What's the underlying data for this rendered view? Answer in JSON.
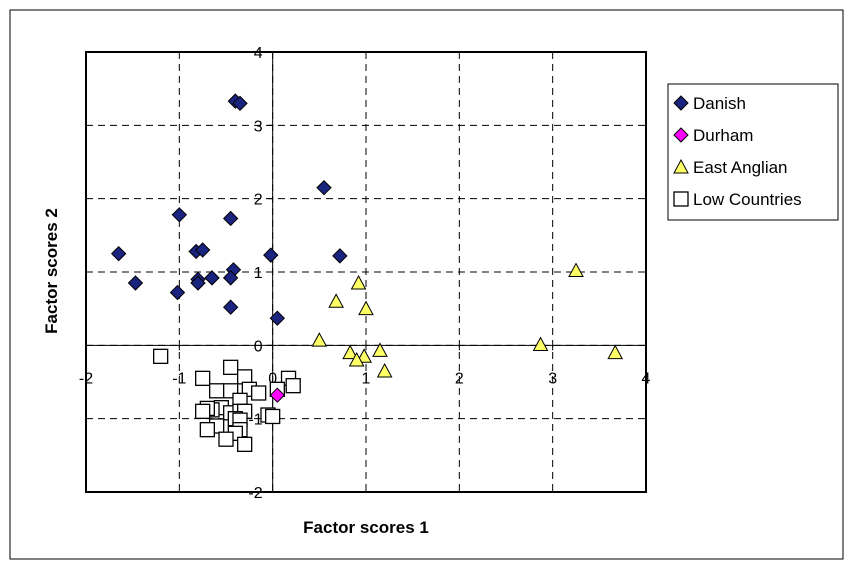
{
  "chart_data": {
    "type": "scatter",
    "xlabel": "Factor scores 1",
    "ylabel": "Factor scores 2",
    "xlim": [
      -2,
      4
    ],
    "ylim": [
      -2,
      4
    ],
    "xticks": [
      -2,
      -1,
      0,
      1,
      2,
      3,
      4
    ],
    "yticks": [
      -2,
      -1,
      0,
      1,
      2,
      3,
      4
    ],
    "xtick_labels": [
      "-2",
      "-1",
      "0",
      "1",
      "2",
      "3",
      "4"
    ],
    "ytick_labels": [
      "-2",
      "-1",
      "0",
      "1",
      "2",
      "3",
      "4"
    ],
    "grid": true,
    "legend_position": "right",
    "series": [
      {
        "name": "Danish",
        "marker": "diamond",
        "fill": "#1a237e",
        "points": [
          [
            -0.4,
            3.33
          ],
          [
            -0.35,
            3.3
          ],
          [
            -1.65,
            1.25
          ],
          [
            -1.47,
            0.85
          ],
          [
            -1.0,
            1.78
          ],
          [
            -0.82,
            1.28
          ],
          [
            -0.75,
            1.3
          ],
          [
            -0.45,
            1.73
          ],
          [
            -0.42,
            1.03
          ],
          [
            -0.45,
            0.92
          ],
          [
            -0.8,
            0.9
          ],
          [
            -0.8,
            0.85
          ],
          [
            -0.65,
            0.92
          ],
          [
            -1.02,
            0.72
          ],
          [
            -0.45,
            0.52
          ],
          [
            -0.02,
            1.23
          ],
          [
            0.05,
            0.37
          ],
          [
            0.55,
            2.15
          ],
          [
            0.72,
            1.22
          ]
        ]
      },
      {
        "name": "Durham",
        "marker": "diamond",
        "fill": "#ff00ff",
        "points": [
          [
            0.05,
            -0.68
          ]
        ]
      },
      {
        "name": "East Anglian",
        "marker": "triangle",
        "fill": "#ffff66",
        "points": [
          [
            3.25,
            1.02
          ],
          [
            0.92,
            0.85
          ],
          [
            0.68,
            0.6
          ],
          [
            1.0,
            0.5
          ],
          [
            0.5,
            0.07
          ],
          [
            2.87,
            0.01
          ],
          [
            3.67,
            -0.1
          ],
          [
            0.83,
            -0.1
          ],
          [
            1.15,
            -0.07
          ],
          [
            0.98,
            -0.15
          ],
          [
            0.9,
            -0.2
          ],
          [
            1.2,
            -0.35
          ]
        ]
      },
      {
        "name": "Low Countries",
        "marker": "square",
        "fill": "#ffffff",
        "points": [
          [
            -1.2,
            -0.15
          ],
          [
            -0.45,
            -0.3
          ],
          [
            -0.75,
            -0.45
          ],
          [
            -0.3,
            -0.43
          ],
          [
            0.17,
            -0.45
          ],
          [
            0.22,
            -0.55
          ],
          [
            -0.6,
            -0.62
          ],
          [
            -0.45,
            -0.62
          ],
          [
            -0.25,
            -0.6
          ],
          [
            -0.15,
            -0.65
          ],
          [
            0.05,
            -0.6
          ],
          [
            -0.35,
            -0.75
          ],
          [
            -0.55,
            -0.85
          ],
          [
            -0.65,
            -0.88
          ],
          [
            -0.7,
            -0.86
          ],
          [
            -0.75,
            -0.9
          ],
          [
            -0.45,
            -0.92
          ],
          [
            -0.35,
            -0.9
          ],
          [
            -0.3,
            -0.9
          ],
          [
            -0.4,
            -1.0
          ],
          [
            -0.35,
            -1.02
          ],
          [
            -0.05,
            -0.95
          ],
          [
            0.0,
            -0.97
          ],
          [
            -0.35,
            -1.15
          ],
          [
            -0.6,
            -1.1
          ],
          [
            -0.4,
            -1.2
          ],
          [
            -0.5,
            -1.28
          ],
          [
            -0.3,
            -1.35
          ],
          [
            -0.7,
            -1.15
          ]
        ]
      }
    ]
  }
}
